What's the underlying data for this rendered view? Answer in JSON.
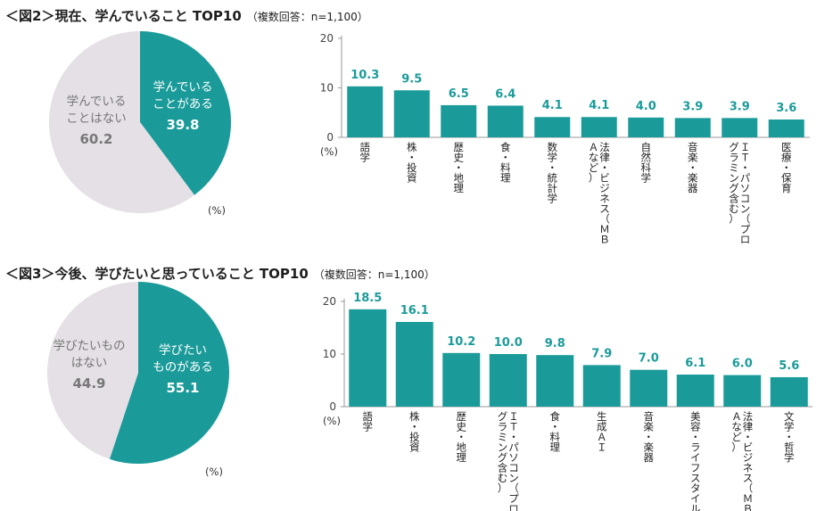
{
  "colors": {
    "accent": "#1a9b99",
    "pie_rest": "#e4e0e5",
    "value_label": "#1a9b99",
    "axis_text": "#444444"
  },
  "chart_data": [
    {
      "figure_label": "＜図2＞",
      "title": "現在、学んでいること TOP10",
      "note": "（複数回答：n=1,100）",
      "pie": {
        "type": "pie",
        "unit_label": "(%)",
        "slices": [
          {
            "label_lines": [
              "学んでいる",
              "ことがある"
            ],
            "value": 39.8,
            "value_text": "39.8",
            "color": "#1a9b99"
          },
          {
            "label_lines": [
              "学んでいる",
              "ことはない"
            ],
            "value": 60.2,
            "value_text": "60.2",
            "color": "#e4e0e5"
          }
        ]
      },
      "bar": {
        "type": "bar",
        "ylabel": "(%)",
        "ylim": [
          0,
          20
        ],
        "yticks": [
          0,
          10,
          20
        ],
        "categories": [
          [
            "語",
            "学"
          ],
          [
            "株",
            "・",
            "投",
            "資"
          ],
          [
            "歴",
            "史",
            "・",
            "地",
            "理"
          ],
          [
            "食",
            "・",
            "料",
            "理"
          ],
          [
            "数",
            "学",
            "・",
            "統",
            "計",
            "学"
          ],
          [
            "法",
            "律",
            "・",
            "ビ",
            "ジ",
            "ネ",
            "ス",
            "（",
            "Ｍ",
            "Ｂ",
            "Ａ",
            "な",
            "ど",
            "）"
          ],
          [
            "自",
            "然",
            "科",
            "学"
          ],
          [
            "音",
            "楽",
            "・",
            "楽",
            "器"
          ],
          [
            "Ｉ",
            "Ｔ",
            "・",
            "パ",
            "ソ",
            "コ",
            "ン",
            "（",
            "プ",
            "ロ",
            "グ",
            "ラ",
            "ミ",
            "ン",
            "グ",
            "含",
            "む",
            "）"
          ],
          [
            "医",
            "療",
            "・",
            "保",
            "育"
          ]
        ],
        "values": [
          10.3,
          9.5,
          6.5,
          6.4,
          4.1,
          4.1,
          4.0,
          3.9,
          3.9,
          3.6
        ],
        "value_labels": [
          "10.3",
          "9.5",
          "6.5",
          "6.4",
          "4.1",
          "4.1",
          "4.0",
          "3.9",
          "3.9",
          "3.6"
        ]
      }
    },
    {
      "figure_label": "＜図3＞",
      "title": "今後、学びたいと思っていること TOP10",
      "note": "（複数回答：n=1,100）",
      "pie": {
        "type": "pie",
        "unit_label": "(%)",
        "slices": [
          {
            "label_lines": [
              "学びたい",
              "ものがある"
            ],
            "value": 55.1,
            "value_text": "55.1",
            "color": "#1a9b99"
          },
          {
            "label_lines": [
              "学びたいもの",
              "はない"
            ],
            "value": 44.9,
            "value_text": "44.9",
            "color": "#e4e0e5"
          }
        ]
      },
      "bar": {
        "type": "bar",
        "ylabel": "(%)",
        "ylim": [
          0,
          20
        ],
        "yticks": [
          0,
          10,
          20
        ],
        "categories": [
          [
            "語",
            "学"
          ],
          [
            "株",
            "・",
            "投",
            "資"
          ],
          [
            "歴",
            "史",
            "・",
            "地",
            "理"
          ],
          [
            "Ｉ",
            "Ｔ",
            "・",
            "パ",
            "ソ",
            "コ",
            "ン",
            "（",
            "プ",
            "ロ",
            "グ",
            "ラ",
            "ミ",
            "ン",
            "グ",
            "含",
            "む",
            "）"
          ],
          [
            "食",
            "・",
            "料",
            "理"
          ],
          [
            "生",
            "成",
            "Ａ",
            "Ｉ"
          ],
          [
            "音",
            "楽",
            "・",
            "楽",
            "器"
          ],
          [
            "美",
            "容",
            "・",
            "ラ",
            "イ",
            "フ",
            "ス",
            "タ",
            "イ",
            "ル"
          ],
          [
            "法",
            "律",
            "・",
            "ビ",
            "ジ",
            "ネ",
            "ス",
            "（",
            "Ｍ",
            "Ｂ",
            "Ａ",
            "な",
            "ど",
            "）"
          ],
          [
            "文",
            "学",
            "・",
            "哲",
            "学"
          ]
        ],
        "values": [
          18.5,
          16.1,
          10.2,
          10.0,
          9.8,
          7.9,
          7.0,
          6.1,
          6.0,
          5.6
        ],
        "value_labels": [
          "18.5",
          "16.1",
          "10.2",
          "10.0",
          "9.8",
          "7.9",
          "7.0",
          "6.1",
          "6.0",
          "5.6"
        ]
      }
    }
  ]
}
